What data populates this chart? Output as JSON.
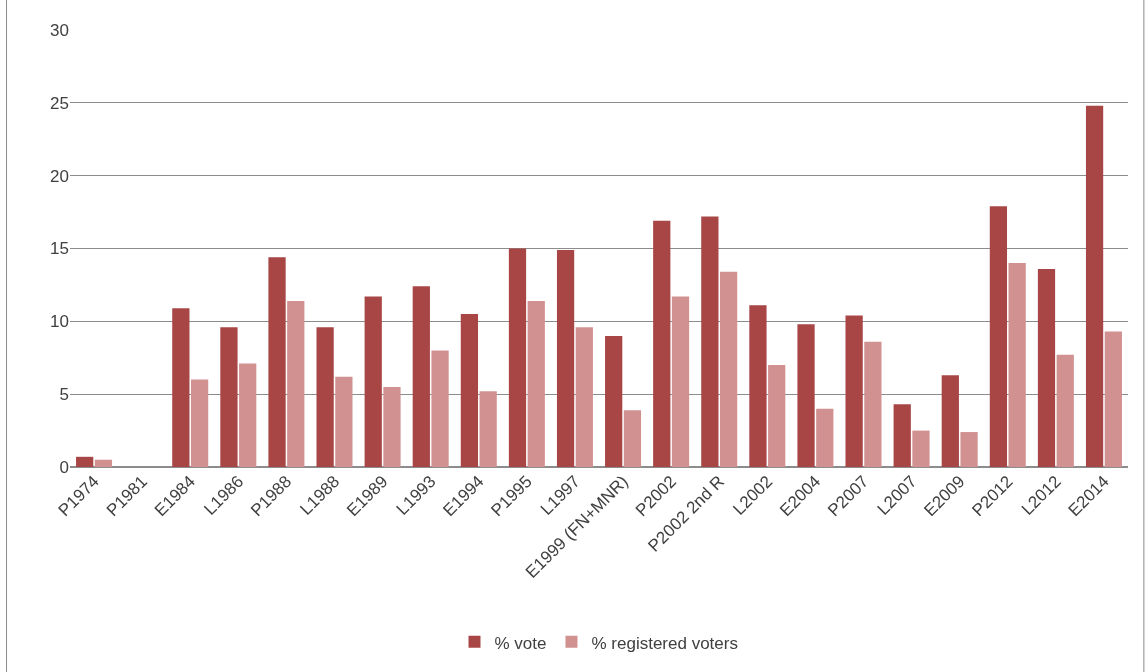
{
  "chart_data": {
    "type": "bar",
    "categories": [
      "P1974",
      "P1981",
      "E1984",
      "L1986",
      "P1988",
      "L1988",
      "E1989",
      "L1993",
      "E1994",
      "P1995",
      "L1997",
      "E1999 (FN+MNR)",
      "P2002",
      "P2002 2nd R",
      "L2002",
      "E2004",
      "P2007",
      "L2007",
      "E2009",
      "P2012",
      "L2012",
      "E2014"
    ],
    "series": [
      {
        "name": "% vote",
        "color": "#a84646",
        "values": [
          0.7,
          null,
          10.9,
          9.6,
          14.4,
          9.6,
          11.7,
          12.4,
          10.5,
          15.0,
          14.9,
          9.0,
          16.9,
          17.2,
          11.1,
          9.8,
          10.4,
          4.3,
          6.3,
          17.9,
          13.6,
          24.8
        ]
      },
      {
        "name": "% registered voters",
        "color": "#d29191",
        "values": [
          0.5,
          null,
          6.0,
          7.1,
          11.4,
          6.2,
          5.5,
          8.0,
          5.2,
          11.4,
          9.6,
          3.9,
          11.7,
          13.4,
          7.0,
          4.0,
          8.6,
          2.5,
          2.4,
          14.0,
          7.7,
          9.3
        ]
      }
    ],
    "ylim": [
      0,
      30
    ],
    "yticks": [
      0,
      5,
      10,
      15,
      20,
      25,
      30
    ],
    "grid": "y",
    "legend": "bottom"
  }
}
